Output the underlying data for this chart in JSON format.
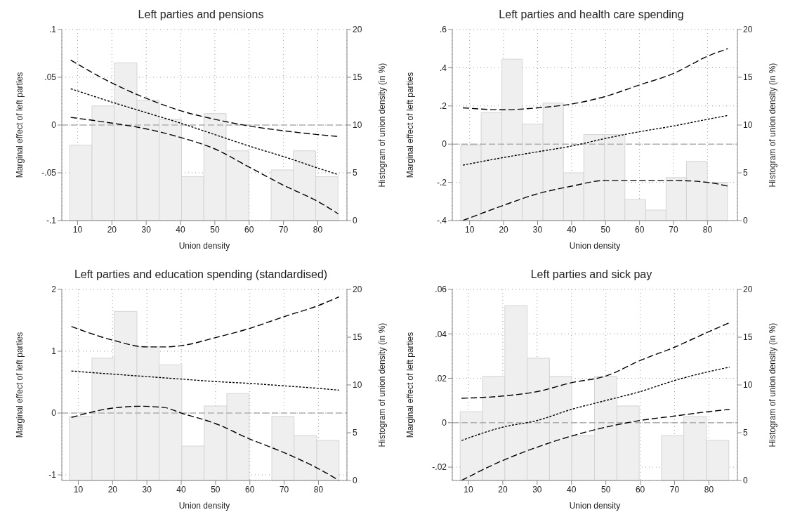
{
  "chart_data": [
    {
      "type": "line",
      "title": "Left parties and pensions",
      "xlabel": "Union density",
      "ylabel": "Marginal effect of left parties",
      "y2label": "Histogram of union density (in %)",
      "xlim": [
        5.4,
        88.5
      ],
      "xticks": [
        10,
        20,
        30,
        40,
        50,
        60,
        70,
        80
      ],
      "ylim": [
        -0.1,
        0.1
      ],
      "yticks": [
        {
          "value": -0.1,
          "label": "-.1"
        },
        {
          "value": -0.05,
          "label": "-.05"
        },
        0,
        {
          "value": 0.05,
          "label": ".05"
        },
        {
          "value": 0.1,
          "label": ".1"
        }
      ],
      "y2lim": [
        0,
        20
      ],
      "y2ticks": [
        0,
        5,
        10,
        15,
        20
      ],
      "grid": true,
      "ref_lines": [
        {
          "axis": "y",
          "value": 0,
          "color": "#b0b0b0",
          "line_style": "dashed"
        }
      ],
      "series": [
        {
          "type": "histogram",
          "axis": "y2",
          "color": "#efefef",
          "bins": [
            7.7,
            14.2,
            20.7,
            27.3,
            33.8,
            40.3,
            46.8,
            53.3,
            59.9,
            66.4,
            72.9,
            79.4,
            85.9
          ],
          "values": [
            7.9,
            12.0,
            16.5,
            12.6,
            10.6,
            4.6,
            11.2,
            7.3,
            0,
            5.3,
            7.3,
            4.6
          ]
        },
        {
          "color": "#000000",
          "line_style": "dashed",
          "x": [
            8,
            20,
            30,
            40,
            50,
            60,
            70,
            80,
            86
          ],
          "values": [
            0.068,
            0.044,
            0.028,
            0.015,
            0.006,
            -0.001,
            -0.006,
            -0.01,
            -0.012
          ]
        },
        {
          "color": "#000000",
          "line_style": "dotted",
          "x": [
            8,
            20,
            30,
            40,
            50,
            60,
            70,
            80,
            86
          ],
          "values": [
            0.038,
            0.024,
            0.013,
            0.002,
            -0.01,
            -0.022,
            -0.033,
            -0.045,
            -0.052
          ]
        },
        {
          "color": "#000000",
          "line_style": "dashed",
          "x": [
            8,
            20,
            30,
            40,
            50,
            60,
            70,
            80,
            86
          ],
          "values": [
            0.008,
            0.002,
            -0.004,
            -0.013,
            -0.025,
            -0.044,
            -0.063,
            -0.08,
            -0.093
          ]
        }
      ]
    },
    {
      "type": "line",
      "title": "Left parties and health care spending",
      "xlabel": "Union density",
      "ylabel": "Marginal effect of left parties",
      "y2label": "Histogram of union density (in %)",
      "xlim": [
        4.9,
        88.8
      ],
      "xticks": [
        10,
        20,
        30,
        40,
        50,
        60,
        70,
        80
      ],
      "ylim": [
        -0.4,
        0.6
      ],
      "yticks": [
        {
          "value": -0.4,
          "label": "-.4"
        },
        {
          "value": -0.2,
          "label": "-.2"
        },
        0,
        {
          "value": 0.2,
          "label": ".2"
        },
        {
          "value": 0.4,
          "label": ".4"
        },
        {
          "value": 0.6,
          "label": ".6"
        }
      ],
      "y2lim": [
        0,
        20
      ],
      "y2ticks": [
        0,
        5,
        10,
        15,
        20
      ],
      "grid": true,
      "ref_lines": [
        {
          "axis": "y",
          "value": 0,
          "color": "#b0b0b0",
          "line_style": "dashed"
        }
      ],
      "series": [
        {
          "type": "histogram",
          "axis": "y2",
          "color": "#efefef",
          "bins": [
            7.4,
            13.4,
            19.5,
            25.5,
            31.6,
            37.6,
            43.6,
            49.7,
            55.7,
            61.8,
            67.8,
            73.8,
            79.9,
            85.9
          ],
          "values": [
            7.9,
            11.3,
            16.9,
            10.1,
            12.3,
            5.0,
            9.0,
            9.0,
            2.2,
            1.1,
            4.5,
            6.2,
            4.0
          ]
        },
        {
          "color": "#000000",
          "line_style": "dashed",
          "x": [
            8,
            20,
            30,
            40,
            50,
            60,
            70,
            80,
            86
          ],
          "values": [
            0.19,
            0.18,
            0.19,
            0.21,
            0.25,
            0.31,
            0.37,
            0.46,
            0.5
          ]
        },
        {
          "color": "#000000",
          "line_style": "dotted",
          "x": [
            8,
            20,
            30,
            40,
            50,
            60,
            70,
            80,
            86
          ],
          "values": [
            -0.11,
            -0.07,
            -0.04,
            -0.01,
            0.03,
            0.065,
            0.095,
            0.13,
            0.15
          ]
        },
        {
          "color": "#000000",
          "line_style": "dashed",
          "x": [
            8,
            20,
            30,
            40,
            50,
            60,
            70,
            80,
            86
          ],
          "values": [
            -0.4,
            -0.32,
            -0.26,
            -0.22,
            -0.19,
            -0.19,
            -0.19,
            -0.2,
            -0.22
          ]
        }
      ]
    },
    {
      "type": "line",
      "title": "Left parties and education spending (standardised)",
      "xlabel": "Union density",
      "ylabel": "Marginal effect of left parties",
      "y2label": "Histogram of union density (in %)",
      "xlim": [
        5.2,
        88.3
      ],
      "xticks": [
        10,
        20,
        30,
        40,
        50,
        60,
        70,
        80
      ],
      "ylim": [
        -1.09,
        2
      ],
      "yticks": [
        -1,
        0,
        1,
        2
      ],
      "y2lim": [
        0,
        20
      ],
      "y2ticks": [
        0,
        5,
        10,
        15,
        20
      ],
      "grid": true,
      "ref_lines": [
        {
          "axis": "y",
          "value": 0,
          "color": "#b0b0b0",
          "line_style": "dashed"
        }
      ],
      "series": [
        {
          "type": "histogram",
          "axis": "y2",
          "color": "#efefef",
          "bins": [
            7.4,
            14.0,
            20.5,
            27.1,
            33.6,
            40.2,
            46.7,
            53.3,
            59.8,
            66.4,
            72.9,
            79.5,
            86.0
          ],
          "values": [
            6.7,
            12.8,
            17.7,
            14.0,
            12.1,
            3.6,
            7.8,
            9.1,
            0,
            6.7,
            4.7,
            4.2
          ]
        },
        {
          "color": "#000000",
          "line_style": "dashed",
          "x": [
            8,
            20,
            30,
            35,
            40,
            50,
            60,
            70,
            80,
            86
          ],
          "values": [
            1.4,
            1.18,
            1.07,
            1.07,
            1.09,
            1.22,
            1.37,
            1.56,
            1.74,
            1.88
          ]
        },
        {
          "color": "#000000",
          "line_style": "dotted",
          "x": [
            8,
            20,
            30,
            40,
            50,
            60,
            70,
            80,
            86
          ],
          "values": [
            0.68,
            0.63,
            0.59,
            0.55,
            0.51,
            0.48,
            0.44,
            0.4,
            0.37
          ]
        },
        {
          "color": "#000000",
          "line_style": "dashed",
          "x": [
            8,
            20,
            28,
            35,
            40,
            50,
            60,
            70,
            80,
            86
          ],
          "values": [
            -0.07,
            0.08,
            0.11,
            0.09,
            0,
            -0.17,
            -0.42,
            -0.64,
            -0.9,
            -1.09
          ]
        }
      ]
    },
    {
      "type": "line",
      "title": "Left parties and sick pay",
      "xlabel": "Union density",
      "ylabel": "Marginal effect of left parties",
      "y2label": "Histogram of union density (in %)",
      "xlim": [
        5.3,
        88.3
      ],
      "xticks": [
        10,
        20,
        30,
        40,
        50,
        60,
        70,
        80
      ],
      "ylim": [
        -0.026,
        0.06
      ],
      "yticks": [
        {
          "value": -0.02,
          "label": "-.02"
        },
        0,
        {
          "value": 0.02,
          "label": ".02"
        },
        {
          "value": 0.04,
          "label": ".04"
        },
        {
          "value": 0.06,
          "label": ".06"
        }
      ],
      "y2lim": [
        0,
        20
      ],
      "y2ticks": [
        0,
        5,
        10,
        15,
        20
      ],
      "grid": true,
      "ref_lines": [
        {
          "axis": "y",
          "value": 0,
          "color": "#b0b0b0",
          "line_style": "dashed"
        }
      ],
      "series": [
        {
          "type": "histogram",
          "axis": "y2",
          "color": "#efefef",
          "bins": [
            7.6,
            14.1,
            20.6,
            27.1,
            33.6,
            40.1,
            46.7,
            53.2,
            59.7,
            66.2,
            72.7,
            79.3,
            85.8
          ],
          "values": [
            7.2,
            10.9,
            18.3,
            12.8,
            10.9,
            4.7,
            10.9,
            7.8,
            0,
            4.7,
            6.7,
            4.2
          ]
        },
        {
          "color": "#000000",
          "line_style": "dashed",
          "x": [
            8,
            20,
            30,
            40,
            50,
            60,
            70,
            80,
            86
          ],
          "values": [
            0.011,
            0.012,
            0.014,
            0.018,
            0.021,
            0.028,
            0.034,
            0.041,
            0.045
          ]
        },
        {
          "color": "#000000",
          "line_style": "dotted",
          "x": [
            8,
            20,
            30,
            40,
            50,
            60,
            70,
            80,
            86
          ],
          "values": [
            -0.008,
            -0.002,
            0.001,
            0.006,
            0.01,
            0.014,
            0.019,
            0.023,
            0.025
          ]
        },
        {
          "color": "#000000",
          "line_style": "dashed",
          "x": [
            8,
            20,
            30,
            40,
            50,
            60,
            70,
            80,
            86
          ],
          "values": [
            -0.026,
            -0.017,
            -0.011,
            -0.006,
            -0.002,
            0.001,
            0.003,
            0.005,
            0.006
          ]
        }
      ]
    }
  ]
}
